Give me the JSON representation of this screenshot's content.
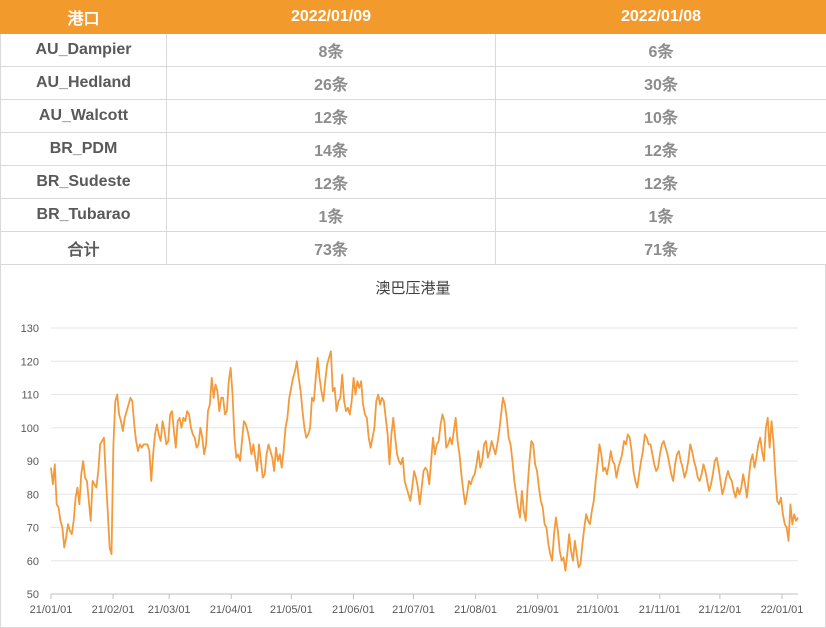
{
  "table": {
    "headers": [
      "港口",
      "2022/01/09",
      "2022/01/08"
    ],
    "rows": [
      {
        "port": "AU_Dampier",
        "v1": "8条",
        "v2": "6条"
      },
      {
        "port": "AU_Hedland",
        "v1": "26条",
        "v2": "30条"
      },
      {
        "port": "AU_Walcott",
        "v1": "12条",
        "v2": "10条"
      },
      {
        "port": "BR_PDM",
        "v1": "14条",
        "v2": "12条"
      },
      {
        "port": "BR_Sudeste",
        "v1": "12条",
        "v2": "12条"
      },
      {
        "port": "BR_Tubarao",
        "v1": "1条",
        "v2": "1条"
      },
      {
        "port": "合计",
        "v1": "73条",
        "v2": "71条"
      }
    ]
  },
  "colors": {
    "header_bg": "#f39a2c",
    "line": "#f39a3c",
    "grid": "#e6e6e6"
  },
  "chart_data": {
    "type": "line",
    "title": "澳巴压港量",
    "xlabel": "",
    "ylabel": "",
    "ylim": [
      50,
      130
    ],
    "yticks": [
      50,
      60,
      70,
      80,
      90,
      100,
      110,
      120,
      130
    ],
    "xticks": [
      "21/01/01",
      "21/02/01",
      "21/03/01",
      "21/04/01",
      "21/05/01",
      "21/06/01",
      "21/07/01",
      "21/08/01",
      "21/09/01",
      "21/10/01",
      "21/11/01",
      "21/12/01",
      "22/01/01"
    ],
    "grid": "horizontal",
    "legend": "none",
    "series": [
      {
        "x_start": "2021/01/01",
        "x_end": "2022/01/09",
        "values": [
          88,
          83,
          89,
          77,
          76,
          72,
          70,
          64,
          67,
          71,
          69,
          68,
          72,
          79,
          82,
          77,
          86,
          90,
          85,
          84,
          78,
          72,
          84,
          83,
          82,
          87,
          95,
          96,
          97,
          85,
          75,
          64,
          62,
          95,
          108,
          110,
          104,
          102,
          99,
          103,
          105,
          107,
          109,
          108,
          101,
          96,
          93,
          95,
          94,
          95,
          95,
          95,
          93,
          84,
          92,
          98,
          101,
          98,
          96,
          102,
          99,
          95,
          96,
          104,
          105,
          99,
          94,
          102,
          103,
          100,
          103,
          102,
          105,
          104,
          100,
          98,
          97,
          94,
          95,
          100,
          97,
          92,
          95,
          105,
          107,
          115,
          109,
          113,
          111,
          105,
          109,
          109,
          104,
          105,
          114,
          118,
          110,
          97,
          91,
          92,
          90,
          96,
          102,
          101,
          99,
          96,
          92,
          95,
          91,
          87,
          95,
          90,
          85,
          86,
          92,
          95,
          93,
          91,
          87,
          94,
          90,
          92,
          88,
          93,
          100,
          103,
          109,
          112,
          115,
          117,
          120,
          115,
          111,
          105,
          100,
          97,
          98,
          100,
          109,
          108,
          115,
          121,
          115,
          111,
          108,
          114,
          119,
          121,
          123,
          111,
          112,
          105,
          108,
          109,
          116,
          108,
          105,
          106,
          104,
          108,
          115,
          110,
          114,
          112,
          114,
          107,
          104,
          103,
          97,
          94,
          97,
          100,
          108,
          110,
          107,
          109,
          108,
          103,
          98,
          89,
          98,
          103,
          97,
          92,
          90,
          89,
          91,
          84,
          82,
          80,
          78,
          82,
          87,
          85,
          82,
          77,
          82,
          87,
          88,
          87,
          83,
          90,
          97,
          92,
          95,
          96,
          101,
          104,
          102,
          94,
          95,
          97,
          95,
          99,
          103,
          96,
          92,
          86,
          81,
          77,
          80,
          84,
          83,
          85,
          86,
          89,
          93,
          88,
          90,
          95,
          96,
          91,
          93,
          96,
          94,
          92,
          95,
          99,
          104,
          109,
          107,
          103,
          97,
          95,
          90,
          84,
          80,
          76,
          73,
          81,
          75,
          72,
          82,
          90,
          96,
          95,
          89,
          87,
          82,
          78,
          76,
          71,
          70,
          65,
          62,
          60,
          68,
          73,
          69,
          63,
          60,
          61,
          57,
          62,
          68,
          63,
          60,
          66,
          62,
          58,
          59,
          65,
          70,
          74,
          72,
          71,
          75,
          78,
          84,
          89,
          95,
          92,
          87,
          88,
          86,
          89,
          93,
          90,
          89,
          85,
          88,
          90,
          92,
          96,
          95,
          98,
          97,
          93,
          87,
          84,
          82,
          86,
          90,
          93,
          98,
          97,
          95,
          95,
          92,
          89,
          87,
          88,
          92,
          95,
          96,
          94,
          92,
          89,
          86,
          84,
          89,
          92,
          93,
          90,
          88,
          85,
          87,
          90,
          95,
          93,
          90,
          88,
          85,
          84,
          86,
          89,
          87,
          84,
          81,
          83,
          86,
          90,
          91,
          88,
          84,
          80,
          82,
          85,
          87,
          85,
          84,
          81,
          79,
          82,
          80,
          82,
          86,
          83,
          79,
          85,
          90,
          92,
          88,
          91,
          95,
          97,
          93,
          90,
          100,
          103,
          94,
          102,
          96,
          86,
          78,
          77,
          79,
          74,
          71,
          70,
          66,
          77,
          71,
          74,
          72,
          73
        ]
      }
    ]
  }
}
